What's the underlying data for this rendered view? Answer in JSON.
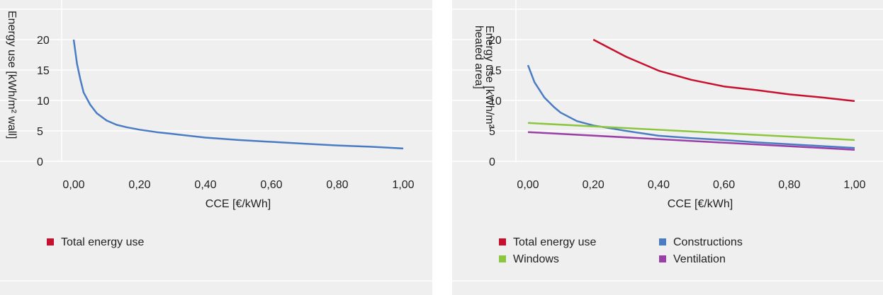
{
  "chart_data": [
    {
      "type": "line",
      "title": "",
      "xlabel": "CCE [€/kWh]",
      "ylabel": "Energy use [kWh/m² wall]",
      "xlim": [
        0,
        1
      ],
      "ylim": [
        0,
        25
      ],
      "x_ticks": [
        "0,00",
        "0,20",
        "0,40",
        "0,60",
        "0,80",
        "1,00"
      ],
      "y_ticks": [
        "0",
        "5",
        "10",
        "15",
        "20"
      ],
      "grid": true,
      "legend_position": "bottom-left",
      "legend": [
        {
          "name": "Total energy use",
          "color": "#c8102e"
        }
      ],
      "series": [
        {
          "name": "",
          "color": "#4a7cc4",
          "x": [
            0.0,
            0.01,
            0.02,
            0.03,
            0.05,
            0.07,
            0.1,
            0.13,
            0.16,
            0.2,
            0.25,
            0.3,
            0.4,
            0.5,
            0.6,
            0.7,
            0.8,
            0.9,
            1.0
          ],
          "y": [
            20,
            16,
            13.5,
            11.3,
            9.3,
            7.9,
            6.7,
            6.0,
            5.6,
            5.2,
            4.8,
            4.5,
            3.9,
            3.5,
            3.2,
            2.9,
            2.6,
            2.4,
            2.1
          ]
        }
      ]
    },
    {
      "type": "line",
      "title": "",
      "xlabel": "CCE [€/kWh]",
      "ylabel": "Energy use [kWh/m² heated area]",
      "xlim": [
        0,
        1
      ],
      "ylim": [
        0,
        25
      ],
      "x_ticks": [
        "0,00",
        "0,20",
        "0,40",
        "0,60",
        "0,80",
        "1,00"
      ],
      "y_ticks": [
        "0",
        "5",
        "10",
        "15",
        "20"
      ],
      "grid": true,
      "legend_position": "bottom-left",
      "series": [
        {
          "name": "Total energy use",
          "color": "#c8102e",
          "x": [
            0.2,
            0.3,
            0.4,
            0.5,
            0.6,
            0.7,
            0.8,
            0.9,
            1.0
          ],
          "y": [
            20,
            17.2,
            14.9,
            13.4,
            12.3,
            11.7,
            11.0,
            10.5,
            9.9
          ]
        },
        {
          "name": "Constructions",
          "color": "#4a7cc4",
          "x": [
            0.0,
            0.02,
            0.05,
            0.08,
            0.1,
            0.15,
            0.2,
            0.3,
            0.4,
            0.5,
            0.6,
            0.7,
            0.8,
            0.9,
            1.0
          ],
          "y": [
            15.8,
            13.0,
            10.5,
            8.9,
            8.0,
            6.6,
            5.9,
            5.0,
            4.2,
            3.8,
            3.5,
            3.1,
            2.8,
            2.5,
            2.2
          ]
        },
        {
          "name": "Windows",
          "color": "#8cc63f",
          "x": [
            0.0,
            1.0
          ],
          "y": [
            6.3,
            3.5
          ]
        },
        {
          "name": "Ventilation",
          "color": "#9b3fa8",
          "x": [
            0.0,
            1.0
          ],
          "y": [
            4.8,
            1.9
          ]
        }
      ]
    }
  ]
}
